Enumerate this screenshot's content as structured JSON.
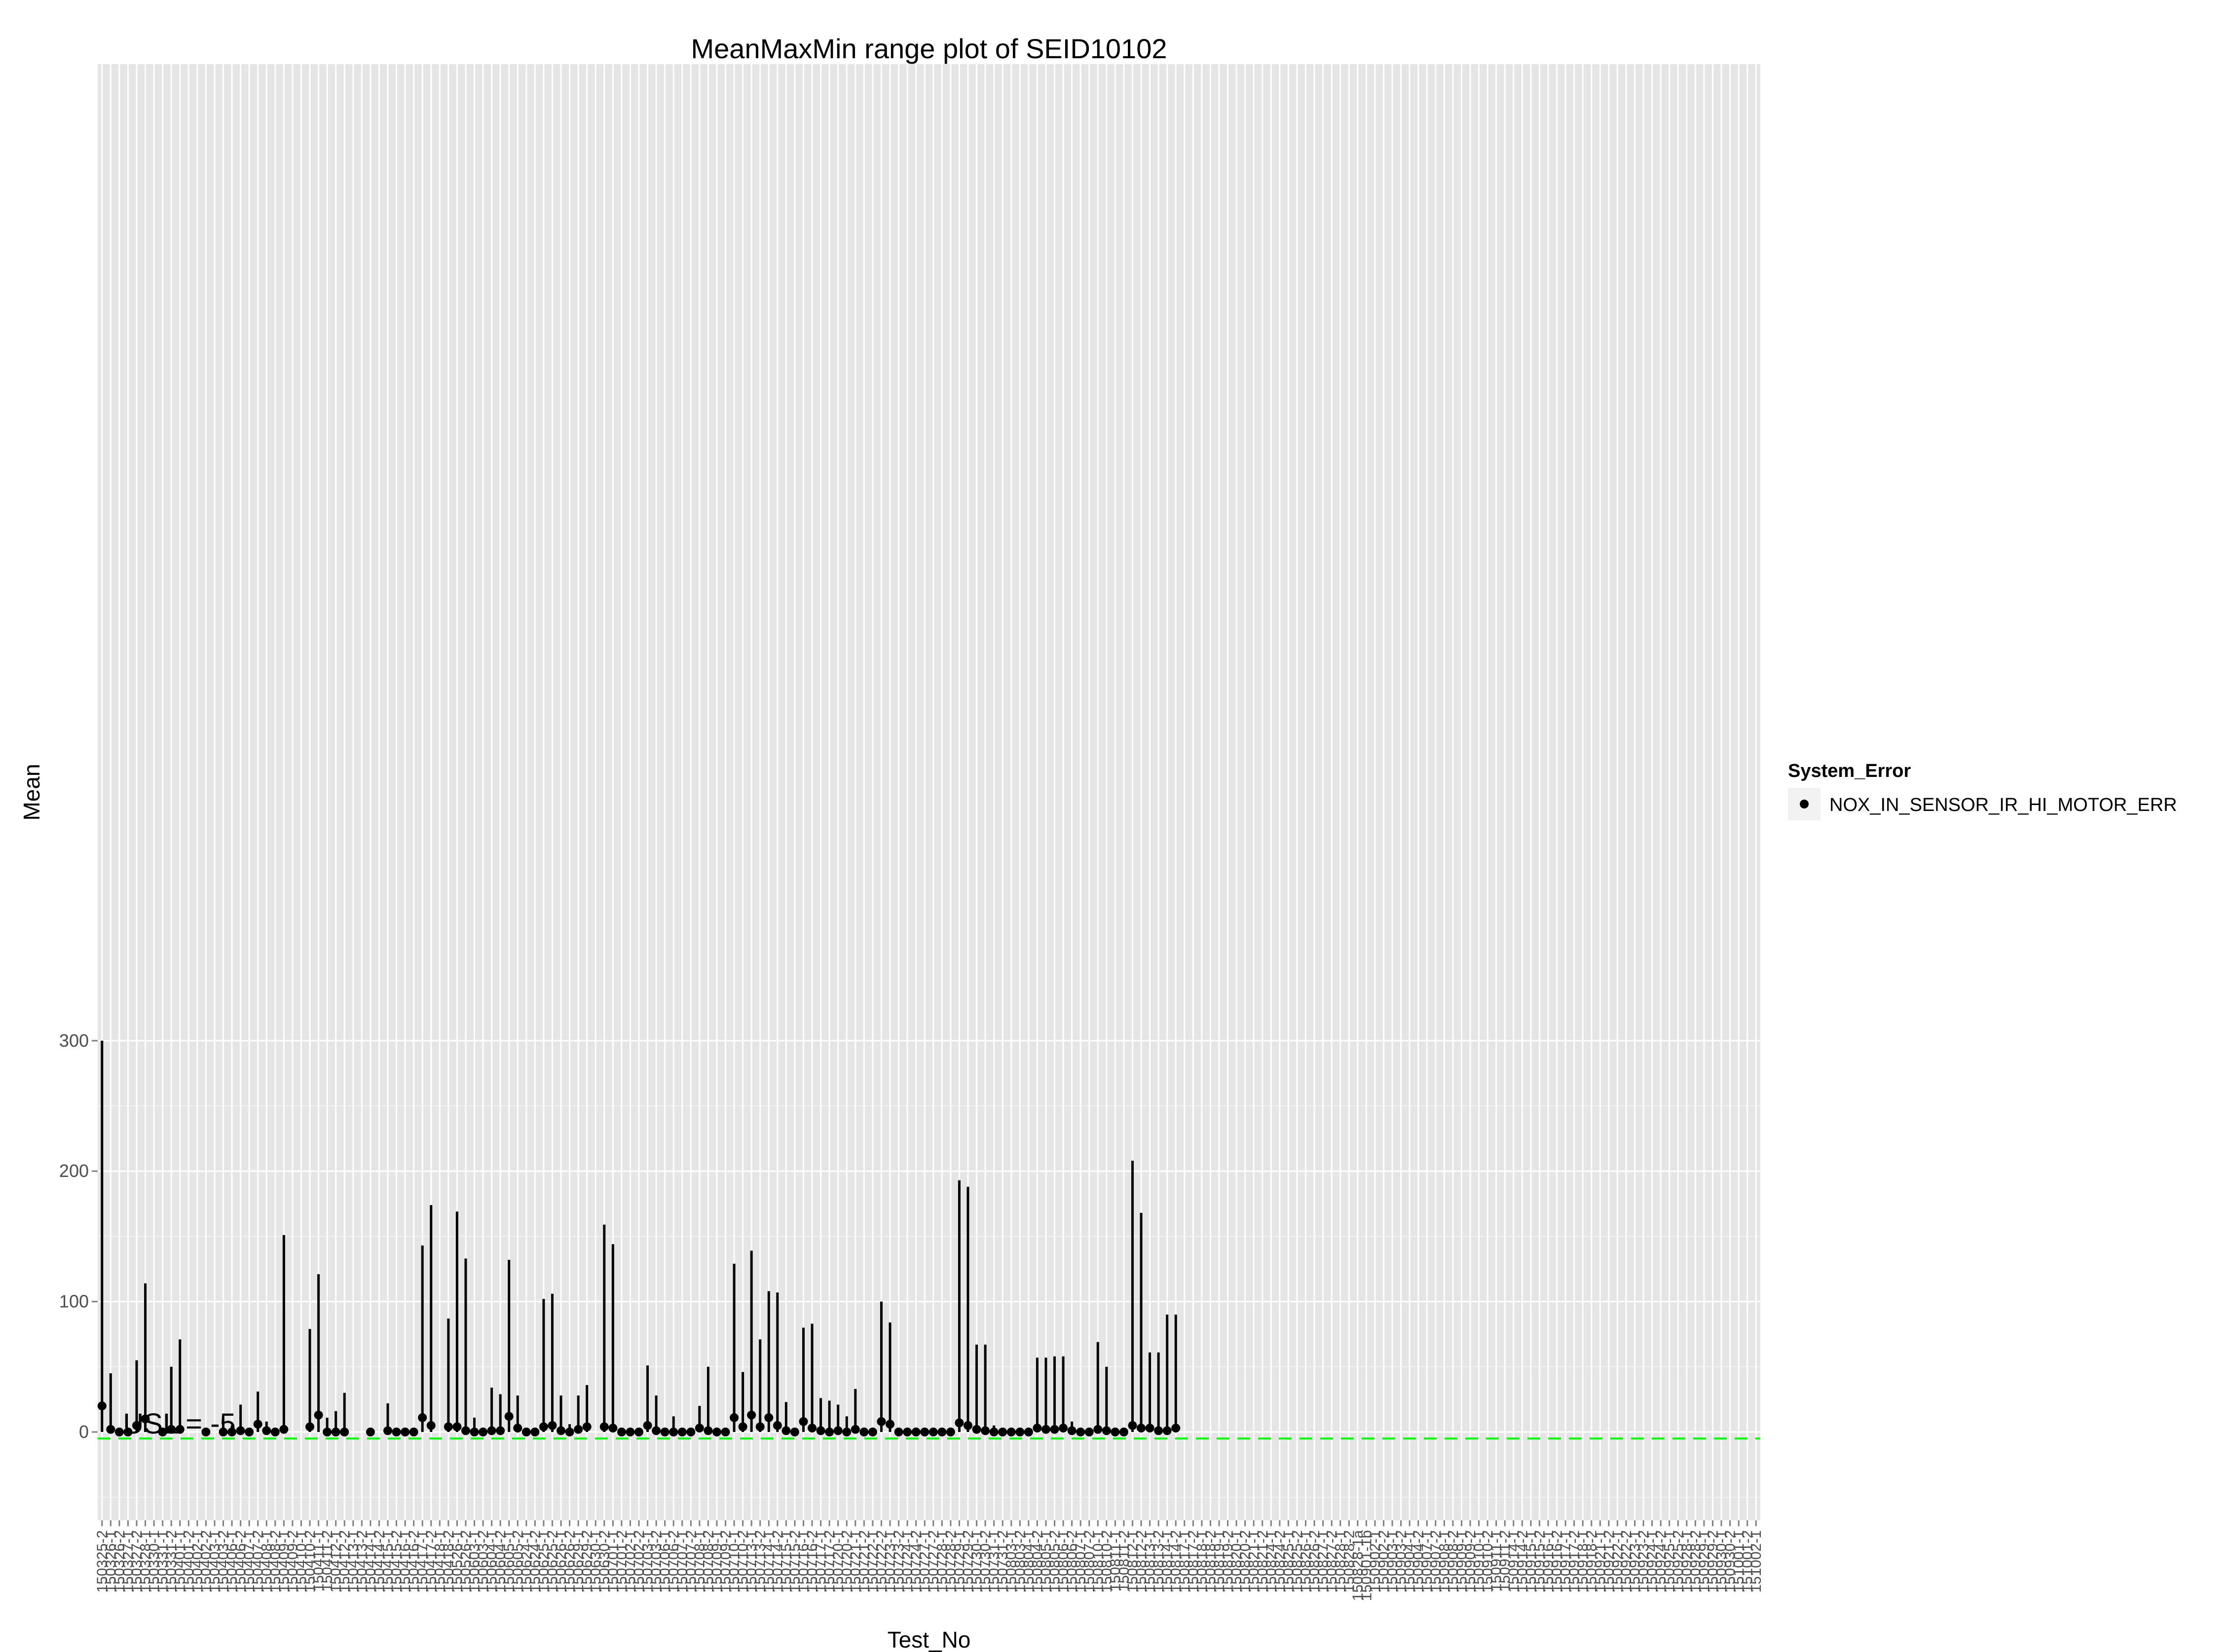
{
  "chart_data": {
    "type": "range",
    "title": "MeanMaxMin range plot of SEID10102",
    "xlabel": "Test_No",
    "ylabel": "Mean",
    "ylim": [
      -20,
      315
    ],
    "yticks": [
      0,
      100,
      200,
      300
    ],
    "grid": true,
    "legend": {
      "title": "System_Error",
      "position": "right",
      "entries": [
        "NOX_IN_SENSOR_IR_HI_MOTOR_ERR"
      ]
    },
    "usl": {
      "value": -5,
      "label": "USL = -5",
      "color": "#00ff00"
    },
    "categories": [
      "150325-2",
      "150326-1",
      "150326-2",
      "150327-1",
      "150327-2",
      "150328-1",
      "150330-1",
      "150331-1",
      "150331-2",
      "150401-1",
      "150401-2",
      "150402-1",
      "150402-2",
      "150403-1",
      "150403-2",
      "150406-1",
      "150406-2",
      "150407-1",
      "150407-2",
      "150408-1",
      "150408-2",
      "150409-1",
      "150409-2",
      "150410-1",
      "150410-2",
      "150411-1",
      "150411-2",
      "150412-1",
      "150412-2",
      "150413-1",
      "150413-2",
      "150414-1",
      "150414-2",
      "150415-1",
      "150415-2",
      "150416-1",
      "150416-2",
      "150417-1",
      "150417-2",
      "150418-1",
      "150418-2",
      "150526-1",
      "150526-2",
      "150603-1",
      "150603-2",
      "150604-1",
      "150604-2",
      "150605-1",
      "150605-2",
      "150624-1",
      "150624-2",
      "150625-1",
      "150625-2",
      "150626-1",
      "150626-2",
      "150629-1",
      "150629-2",
      "150630-1",
      "150630-2",
      "150701-1",
      "150701-2",
      "150702-1",
      "150702-2",
      "150703-1",
      "150703-2",
      "150706-1",
      "150706-2",
      "150707-1",
      "150707-2",
      "150708-1",
      "150708-2",
      "150709-1",
      "150709-2",
      "150710-1",
      "150710-2",
      "150713-1",
      "150713-2",
      "150714-1",
      "150714-2",
      "150715-1",
      "150715-2",
      "150716-1",
      "150716-2",
      "150717-1",
      "150717-2",
      "150720-1",
      "150720-2",
      "150721-1",
      "150721-2",
      "150722-1",
      "150722-2",
      "150723-1",
      "150723-2",
      "150724-1",
      "150724-2",
      "150727-1",
      "150727-2",
      "150728-1",
      "150728-2",
      "150729-1",
      "150729-2",
      "150730-1",
      "150730-2",
      "150731-1",
      "150731-2",
      "150803-1",
      "150803-2",
      "150804-1",
      "150804-2",
      "150805-1",
      "150805-2",
      "150806-1",
      "150806-2",
      "150807-1",
      "150807-2",
      "150810-1",
      "150810-2",
      "150811-1",
      "150811-2",
      "150812-1",
      "150812-2",
      "150813-1",
      "150813-2",
      "150814-1",
      "150814-2",
      "150817-1",
      "150817-2",
      "150818-1",
      "150818-2",
      "150819-1",
      "150819-2",
      "150820-1",
      "150820-2",
      "150821-1",
      "150821-2",
      "150824-1",
      "150824-2",
      "150825-1",
      "150825-2",
      "150826-1",
      "150826-2",
      "150827-1",
      "150827-2",
      "150828-1",
      "150828-2",
      "150828-1a",
      "150901-1b",
      "150902-1",
      "150902-2",
      "150903-1",
      "150903-2",
      "150904-1",
      "150904-2",
      "150907-1",
      "150907-2",
      "150908-1",
      "150908-2",
      "150909-1",
      "150909-2",
      "150910-1",
      "150910-2",
      "150911-1",
      "150911-2",
      "150914-1",
      "150914-2",
      "150915-1",
      "150915-2",
      "150916-1",
      "150916-2",
      "150917-1",
      "150917-2",
      "150918-1",
      "150918-2",
      "150921-1",
      "150921-2",
      "150922-1",
      "150922-2",
      "150923-1",
      "150923-2",
      "150924-1",
      "150924-2",
      "150925-1",
      "150925-2",
      "150928-1",
      "150928-2",
      "150929-1",
      "150929-2",
      "150930-1",
      "150930-2",
      "151001-1",
      "151001-2",
      "151002-1"
    ],
    "series": [
      {
        "name": "NOX_IN_SENSOR_IR_HI_MOTOR_ERR",
        "points": [
          {
            "i": 1,
            "mean": 20,
            "max": 300,
            "min": 0
          },
          {
            "i": 2,
            "mean": 2,
            "max": 45,
            "min": 0
          },
          {
            "i": 3,
            "mean": 0,
            "max": 0,
            "min": 0
          },
          {
            "i": 4,
            "mean": 0,
            "max": 0,
            "min": 0
          },
          {
            "i": 5,
            "mean": 5,
            "max": 55,
            "min": 0
          },
          {
            "i": 6,
            "mean": 10,
            "max": 114,
            "min": 0
          },
          {
            "i": 8,
            "mean": 0,
            "max": 0,
            "min": 0
          },
          {
            "i": 9,
            "mean": 2,
            "max": 50,
            "min": 0
          },
          {
            "i": 10,
            "mean": 2,
            "max": 71,
            "min": 0
          },
          {
            "i": 13,
            "mean": 0,
            "max": 0,
            "min": 0
          },
          {
            "i": 15,
            "mean": 0,
            "max": 10,
            "min": 0
          },
          {
            "i": 16,
            "mean": 0,
            "max": 5,
            "min": 0
          },
          {
            "i": 17,
            "mean": 1,
            "max": 21,
            "min": 0
          },
          {
            "i": 18,
            "mean": 0,
            "max": 0,
            "min": 0
          },
          {
            "i": 19,
            "mean": 6,
            "max": 31,
            "min": 0
          },
          {
            "i": 20,
            "mean": 1,
            "max": 8,
            "min": 0
          },
          {
            "i": 21,
            "mean": 0,
            "max": 0,
            "min": 0
          },
          {
            "i": 22,
            "mean": 2,
            "max": 151,
            "min": 0
          },
          {
            "i": 25,
            "mean": 4,
            "max": 79,
            "min": 0
          },
          {
            "i": 26,
            "mean": 13,
            "max": 121,
            "min": 0
          },
          {
            "i": 27,
            "mean": 0,
            "max": 11,
            "min": 0
          },
          {
            "i": 28,
            "mean": 0,
            "max": 16,
            "min": 0
          },
          {
            "i": 29,
            "mean": 0,
            "max": 30,
            "min": 0
          },
          {
            "i": 32,
            "mean": 0,
            "max": 0,
            "min": 0
          },
          {
            "i": 34,
            "mean": 1,
            "max": 22,
            "min": 0
          },
          {
            "i": 35,
            "mean": 0,
            "max": 3,
            "min": 0
          },
          {
            "i": 36,
            "mean": 0,
            "max": 0,
            "min": 0
          },
          {
            "i": 37,
            "mean": 0,
            "max": 0,
            "min": 0
          },
          {
            "i": 38,
            "mean": 11,
            "max": 143,
            "min": 0
          },
          {
            "i": 39,
            "mean": 5,
            "max": 174,
            "min": 0
          },
          {
            "i": 41,
            "mean": 4,
            "max": 87,
            "min": 0
          },
          {
            "i": 42,
            "mean": 4,
            "max": 169,
            "min": 0
          },
          {
            "i": 43,
            "mean": 1,
            "max": 133,
            "min": 0
          },
          {
            "i": 44,
            "mean": 0,
            "max": 11,
            "min": 0
          },
          {
            "i": 45,
            "mean": 0,
            "max": 0,
            "min": 0
          },
          {
            "i": 46,
            "mean": 1,
            "max": 34,
            "min": 0
          },
          {
            "i": 47,
            "mean": 1,
            "max": 29,
            "min": 0
          },
          {
            "i": 48,
            "mean": 12,
            "max": 132,
            "min": 0
          },
          {
            "i": 49,
            "mean": 3,
            "max": 28,
            "min": 0
          },
          {
            "i": 50,
            "mean": 0,
            "max": 0,
            "min": 0
          },
          {
            "i": 51,
            "mean": 0,
            "max": 0,
            "min": 0
          },
          {
            "i": 52,
            "mean": 4,
            "max": 102,
            "min": 0
          },
          {
            "i": 53,
            "mean": 5,
            "max": 106,
            "min": 0
          },
          {
            "i": 54,
            "mean": 1,
            "max": 28,
            "min": 0
          },
          {
            "i": 55,
            "mean": 0,
            "max": 6,
            "min": 0
          },
          {
            "i": 56,
            "mean": 2,
            "max": 28,
            "min": 0
          },
          {
            "i": 57,
            "mean": 4,
            "max": 36,
            "min": 0
          },
          {
            "i": 59,
            "mean": 4,
            "max": 159,
            "min": 0
          },
          {
            "i": 60,
            "mean": 3,
            "max": 144,
            "min": 0
          },
          {
            "i": 61,
            "mean": 0,
            "max": 0,
            "min": 0
          },
          {
            "i": 62,
            "mean": 0,
            "max": 0,
            "min": 0
          },
          {
            "i": 63,
            "mean": 0,
            "max": 0,
            "min": 0
          },
          {
            "i": 64,
            "mean": 5,
            "max": 51,
            "min": 0
          },
          {
            "i": 65,
            "mean": 1,
            "max": 28,
            "min": 0
          },
          {
            "i": 66,
            "mean": 0,
            "max": 0,
            "min": 0
          },
          {
            "i": 67,
            "mean": 0,
            "max": 12,
            "min": 0
          },
          {
            "i": 68,
            "mean": 0,
            "max": 0,
            "min": 0
          },
          {
            "i": 69,
            "mean": 0,
            "max": 0,
            "min": 0
          },
          {
            "i": 70,
            "mean": 3,
            "max": 20,
            "min": 0
          },
          {
            "i": 71,
            "mean": 1,
            "max": 50,
            "min": 0
          },
          {
            "i": 72,
            "mean": 0,
            "max": 0,
            "min": 0
          },
          {
            "i": 73,
            "mean": 0,
            "max": 0,
            "min": 0
          },
          {
            "i": 74,
            "mean": 11,
            "max": 129,
            "min": 0
          },
          {
            "i": 75,
            "mean": 4,
            "max": 46,
            "min": 0
          },
          {
            "i": 76,
            "mean": 13,
            "max": 139,
            "min": 0
          },
          {
            "i": 77,
            "mean": 4,
            "max": 71,
            "min": 0
          },
          {
            "i": 78,
            "mean": 11,
            "max": 108,
            "min": 0
          },
          {
            "i": 79,
            "mean": 5,
            "max": 107,
            "min": 0
          },
          {
            "i": 80,
            "mean": 1,
            "max": 23,
            "min": 0
          },
          {
            "i": 81,
            "mean": 0,
            "max": 3,
            "min": 0
          },
          {
            "i": 82,
            "mean": 8,
            "max": 80,
            "min": 0
          },
          {
            "i": 83,
            "mean": 3,
            "max": 83,
            "min": 0
          },
          {
            "i": 84,
            "mean": 1,
            "max": 26,
            "min": 0
          },
          {
            "i": 85,
            "mean": 0,
            "max": 24,
            "min": 0
          },
          {
            "i": 86,
            "mean": 1,
            "max": 21,
            "min": 0
          },
          {
            "i": 87,
            "mean": 0,
            "max": 12,
            "min": 0
          },
          {
            "i": 88,
            "mean": 2,
            "max": 33,
            "min": 0
          },
          {
            "i": 89,
            "mean": 0,
            "max": 0,
            "min": 0
          },
          {
            "i": 90,
            "mean": 0,
            "max": 0,
            "min": 0
          },
          {
            "i": 91,
            "mean": 8,
            "max": 100,
            "min": 0
          },
          {
            "i": 92,
            "mean": 6,
            "max": 84,
            "min": 0
          },
          {
            "i": 93,
            "mean": 0,
            "max": 0,
            "min": 0
          },
          {
            "i": 94,
            "mean": 0,
            "max": 0,
            "min": 0
          },
          {
            "i": 95,
            "mean": 0,
            "max": 0,
            "min": 0
          },
          {
            "i": 96,
            "mean": 0,
            "max": 0,
            "min": 0
          },
          {
            "i": 97,
            "mean": 0,
            "max": 0,
            "min": 0
          },
          {
            "i": 98,
            "mean": 0,
            "max": 0,
            "min": 0
          },
          {
            "i": 99,
            "mean": 0,
            "max": 0,
            "min": 0
          },
          {
            "i": 100,
            "mean": 7,
            "max": 193,
            "min": 0
          },
          {
            "i": 101,
            "mean": 5,
            "max": 188,
            "min": 0
          },
          {
            "i": 102,
            "mean": 2,
            "max": 67,
            "min": 0
          },
          {
            "i": 103,
            "mean": 1,
            "max": 67,
            "min": 0
          },
          {
            "i": 104,
            "mean": 0,
            "max": 5,
            "min": 0
          },
          {
            "i": 105,
            "mean": 0,
            "max": 0,
            "min": 0
          },
          {
            "i": 106,
            "mean": 0,
            "max": 0,
            "min": 0
          },
          {
            "i": 107,
            "mean": 0,
            "max": 0,
            "min": 0
          },
          {
            "i": 108,
            "mean": 0,
            "max": 0,
            "min": 0
          },
          {
            "i": 109,
            "mean": 3,
            "max": 57,
            "min": 0
          },
          {
            "i": 110,
            "mean": 2,
            "max": 57,
            "min": 0
          },
          {
            "i": 111,
            "mean": 2,
            "max": 58,
            "min": 0
          },
          {
            "i": 112,
            "mean": 3,
            "max": 58,
            "min": 0
          },
          {
            "i": 113,
            "mean": 1,
            "max": 8,
            "min": 0
          },
          {
            "i": 114,
            "mean": 0,
            "max": 0,
            "min": 0
          },
          {
            "i": 115,
            "mean": 0,
            "max": 0,
            "min": 0
          },
          {
            "i": 116,
            "mean": 2,
            "max": 69,
            "min": 0
          },
          {
            "i": 117,
            "mean": 1,
            "max": 50,
            "min": 0
          },
          {
            "i": 118,
            "mean": 0,
            "max": 0,
            "min": 0
          },
          {
            "i": 119,
            "mean": 0,
            "max": 0,
            "min": 0
          },
          {
            "i": 120,
            "mean": 5,
            "max": 208,
            "min": 0
          },
          {
            "i": 121,
            "mean": 3,
            "max": 168,
            "min": 0
          },
          {
            "i": 122,
            "mean": 3,
            "max": 61,
            "min": 0
          },
          {
            "i": 123,
            "mean": 1,
            "max": 61,
            "min": 0
          },
          {
            "i": 124,
            "mean": 1,
            "max": 90,
            "min": 0
          },
          {
            "i": 125,
            "mean": 3,
            "max": 90,
            "min": 0
          }
        ]
      }
    ]
  },
  "plot_colors": {
    "panel": "#e5e5e5",
    "grid_major": "#ffffff",
    "grid_minor": "#f2f2f2",
    "mark": "#000000",
    "usl": "#00ff00"
  }
}
